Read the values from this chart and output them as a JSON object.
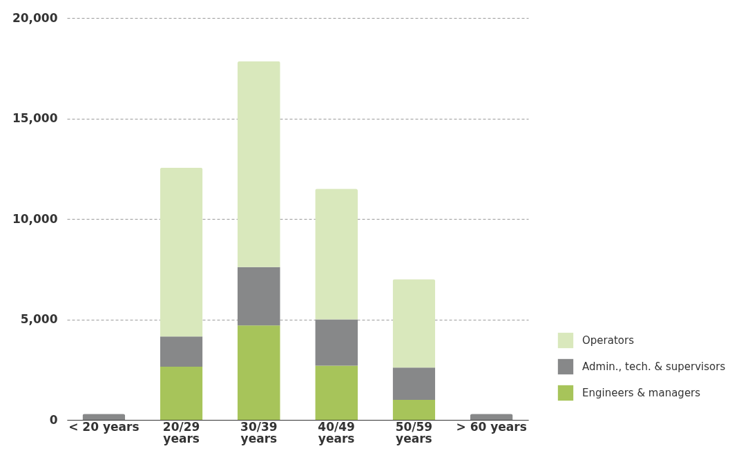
{
  "chart_data": {
    "type": "bar",
    "stacked": true,
    "categories": [
      "< 20 years",
      "20/29\nyears",
      "30/39\nyears",
      "40/49\nyears",
      "50/59\nyears",
      "> 60 years"
    ],
    "series": [
      {
        "name": "Engineers & managers",
        "color": "#a7c45a",
        "values": [
          0,
          2650,
          4700,
          2700,
          1000,
          0
        ]
      },
      {
        "name": "Admin., tech. & supervisors",
        "color": "#878889",
        "values": [
          300,
          1500,
          2900,
          2300,
          1600,
          300
        ]
      },
      {
        "name": "Operators",
        "color": "#d9e8bc",
        "values": [
          0,
          8400,
          10250,
          6500,
          4400,
          0
        ]
      }
    ],
    "ylim": [
      0,
      20000
    ],
    "yticks": [
      0,
      {
        "value": 5000,
        "label": "5,000"
      },
      {
        "value": 10000,
        "label": "10,000"
      },
      {
        "value": 15000,
        "label": "15,000"
      },
      {
        "value": 20000,
        "label": "20,000"
      }
    ],
    "grid": "y",
    "legend": "right"
  }
}
